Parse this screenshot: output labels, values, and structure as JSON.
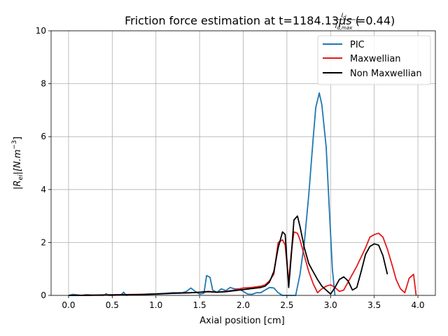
{
  "chart_data": {
    "type": "line",
    "title": "Friction force estimation at t=1184.13μs (I_d/I_d,max=0.44)",
    "title_parts": {
      "prefix": "Friction force estimation at t=1184.13",
      "unit": "μs",
      "paren_open": " (",
      "frac_num": "I",
      "frac_num_sub": "d",
      "frac_den": "I",
      "frac_den_sub": "d,max",
      "ratio": "=0.44)"
    },
    "xlabel": "Axial position [cm]",
    "ylabel": "|R_ei|[N.m^-3]",
    "ylabel_parts": {
      "R": "|R",
      "sub": "ei",
      "mid": "|[N.m",
      "sup": "−3",
      "end": "]"
    },
    "xlim": [
      -0.2,
      4.2
    ],
    "ylim": [
      0,
      10
    ],
    "xticks": [
      0.0,
      0.5,
      1.0,
      1.5,
      2.0,
      2.5,
      3.0,
      3.5,
      4.0
    ],
    "xtick_labels": [
      "0.0",
      "0.5",
      "1.0",
      "1.5",
      "2.0",
      "2.5",
      "3.0",
      "3.5",
      "4.0"
    ],
    "yticks": [
      0,
      2,
      4,
      6,
      8,
      10
    ],
    "ytick_labels": [
      "0",
      "2",
      "4",
      "6",
      "8",
      "10"
    ],
    "grid": true,
    "legend": {
      "placement": "top-right"
    },
    "series": [
      {
        "name": "PIC",
        "color": "#1f77b4",
        "x": [
          0.0,
          0.05,
          0.1,
          0.15,
          0.2,
          0.3,
          0.4,
          0.43,
          0.46,
          0.5,
          0.6,
          0.63,
          0.66,
          0.7,
          0.8,
          0.9,
          1.0,
          1.1,
          1.2,
          1.3,
          1.35,
          1.4,
          1.45,
          1.5,
          1.55,
          1.58,
          1.62,
          1.65,
          1.7,
          1.75,
          1.8,
          1.85,
          1.9,
          1.95,
          2.0,
          2.05,
          2.1,
          2.15,
          2.2,
          2.25,
          2.3,
          2.35,
          2.4,
          2.45,
          2.5,
          2.55,
          2.6,
          2.65,
          2.7,
          2.75,
          2.8,
          2.83,
          2.87,
          2.9,
          2.95,
          2.98,
          3.02,
          3.05
        ],
        "y": [
          0.0,
          0.04,
          0.02,
          0.0,
          0.03,
          0.01,
          0.0,
          0.06,
          0.0,
          0.0,
          0.02,
          0.12,
          0.0,
          0.02,
          0.03,
          0.05,
          0.06,
          0.08,
          0.1,
          0.1,
          0.15,
          0.28,
          0.15,
          0.05,
          0.08,
          0.75,
          0.68,
          0.2,
          0.12,
          0.25,
          0.18,
          0.3,
          0.25,
          0.25,
          0.15,
          0.05,
          0.04,
          0.1,
          0.1,
          0.2,
          0.3,
          0.28,
          0.1,
          0.0,
          0.0,
          0.0,
          0.0,
          0.8,
          2.0,
          3.8,
          5.9,
          7.1,
          7.65,
          7.2,
          5.6,
          3.6,
          1.0,
          0.0
        ]
      },
      {
        "name": "Maxwellian",
        "color": "#e41a1c",
        "x": [
          0.0,
          0.2,
          0.4,
          0.6,
          0.8,
          1.0,
          1.2,
          1.4,
          1.5,
          1.6,
          1.7,
          1.8,
          1.9,
          2.0,
          2.1,
          2.2,
          2.25,
          2.3,
          2.35,
          2.4,
          2.45,
          2.48,
          2.52,
          2.55,
          2.58,
          2.62,
          2.65,
          2.7,
          2.75,
          2.8,
          2.85,
          2.9,
          2.95,
          3.0,
          3.05,
          3.1,
          3.15,
          3.2,
          3.3,
          3.4,
          3.45,
          3.5,
          3.55,
          3.6,
          3.65,
          3.7,
          3.75,
          3.8,
          3.85,
          3.9,
          3.95,
          3.98
        ],
        "y": [
          0.0,
          0.01,
          0.02,
          0.03,
          0.04,
          0.05,
          0.08,
          0.1,
          0.12,
          0.15,
          0.12,
          0.15,
          0.2,
          0.28,
          0.3,
          0.35,
          0.4,
          0.55,
          0.8,
          2.0,
          2.1,
          1.9,
          0.5,
          1.6,
          2.4,
          2.35,
          2.1,
          1.5,
          0.9,
          0.45,
          0.1,
          0.25,
          0.35,
          0.4,
          0.3,
          0.15,
          0.2,
          0.5,
          1.1,
          1.8,
          2.2,
          2.3,
          2.35,
          2.2,
          1.75,
          1.2,
          0.6,
          0.25,
          0.1,
          0.65,
          0.8,
          0.0
        ]
      },
      {
        "name": "Non Maxwellian",
        "color": "#000000",
        "x": [
          0.0,
          0.2,
          0.4,
          0.6,
          0.8,
          1.0,
          1.2,
          1.4,
          1.5,
          1.6,
          1.7,
          1.8,
          1.9,
          2.0,
          2.1,
          2.2,
          2.25,
          2.3,
          2.35,
          2.4,
          2.45,
          2.48,
          2.52,
          2.55,
          2.58,
          2.62,
          2.65,
          2.7,
          2.75,
          2.8,
          2.85,
          2.9,
          2.95,
          3.0,
          3.05,
          3.1,
          3.15,
          3.2,
          3.25,
          3.3,
          3.35,
          3.4,
          3.45,
          3.5,
          3.55,
          3.6,
          3.65
        ],
        "y": [
          0.0,
          0.0,
          0.01,
          0.02,
          0.03,
          0.05,
          0.08,
          0.1,
          0.12,
          0.14,
          0.12,
          0.14,
          0.18,
          0.22,
          0.26,
          0.3,
          0.35,
          0.5,
          0.9,
          1.8,
          2.4,
          2.3,
          0.3,
          1.5,
          2.85,
          3.0,
          2.6,
          1.8,
          1.2,
          0.9,
          0.6,
          0.35,
          0.2,
          0.05,
          0.3,
          0.6,
          0.7,
          0.55,
          0.2,
          0.3,
          0.9,
          1.55,
          1.85,
          1.95,
          1.9,
          1.5,
          0.8
        ]
      }
    ]
  }
}
